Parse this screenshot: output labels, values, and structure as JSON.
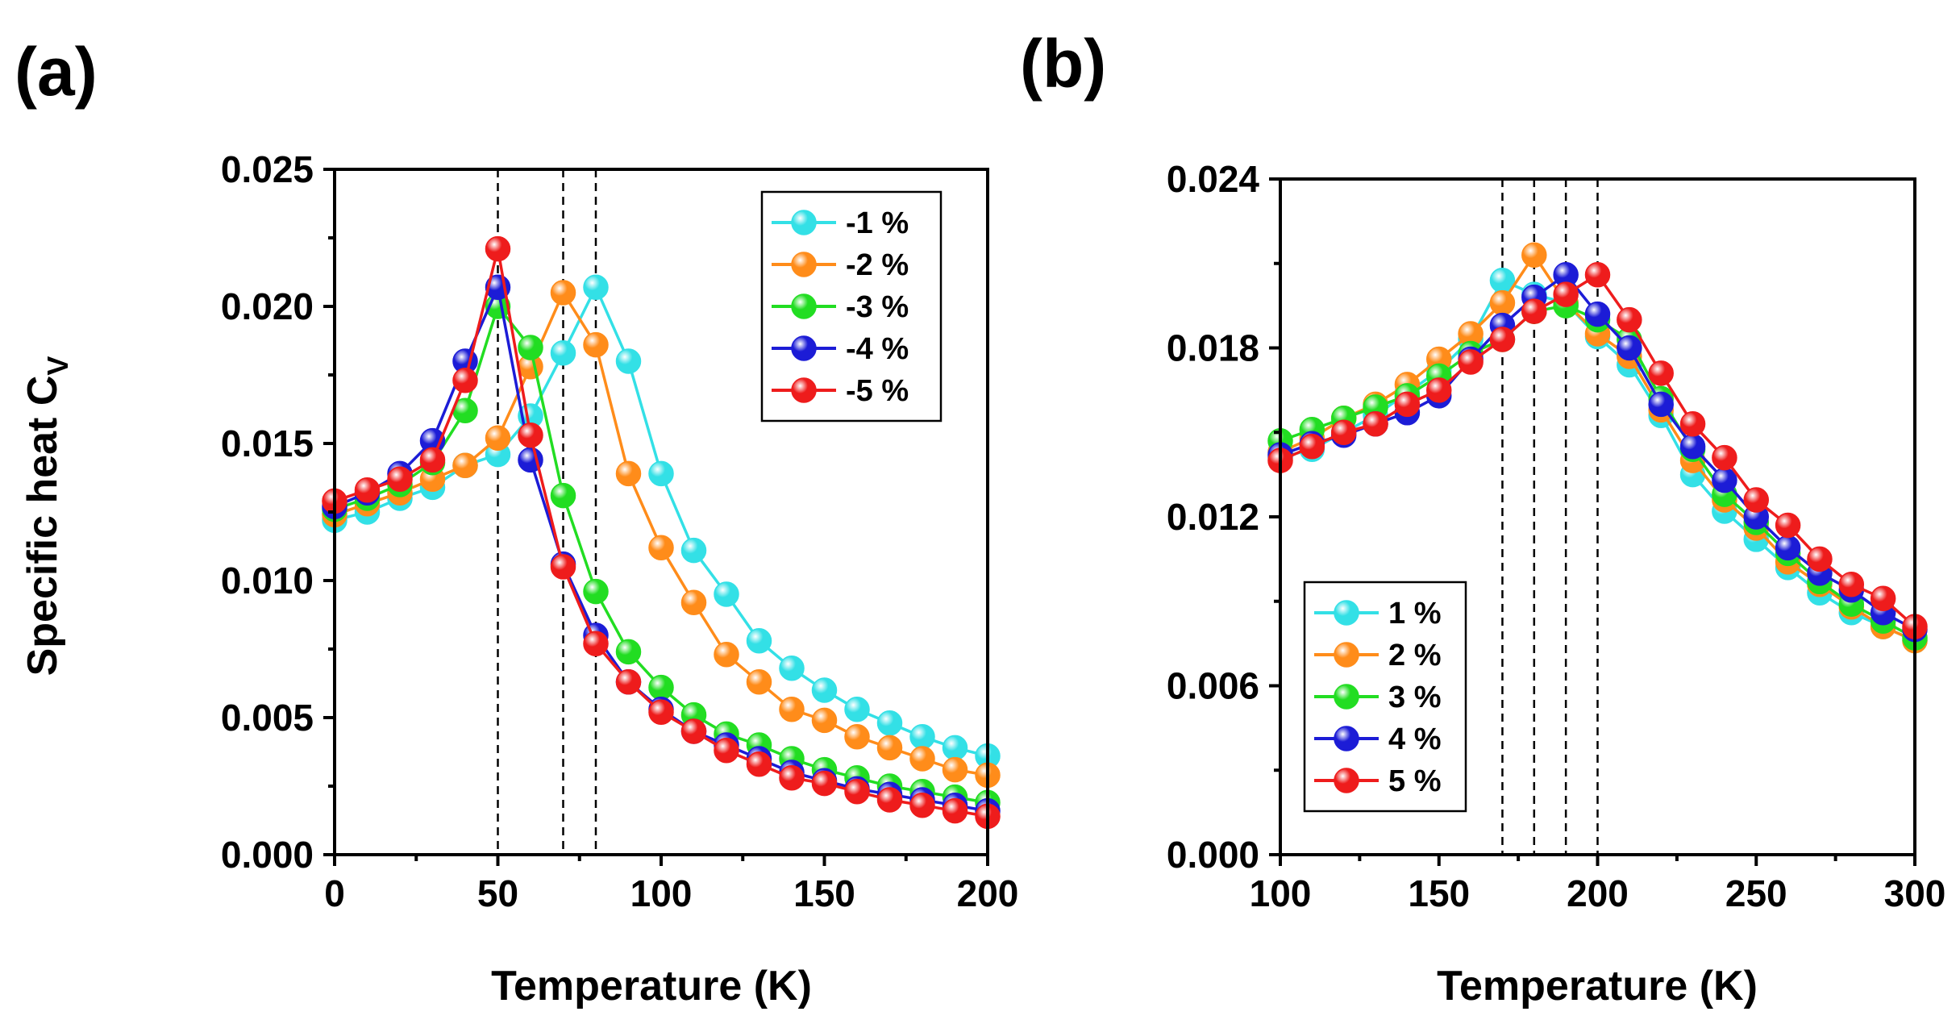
{
  "chart_data": [
    {
      "type": "line",
      "panel_label": "(a)",
      "xlabel": "Temperature (K)",
      "ylabel": "Specific heat C",
      "ylabel_subscript": "V",
      "xlim": [
        0,
        200
      ],
      "ylim": [
        0,
        0.025
      ],
      "xticks": [
        0,
        50,
        100,
        150,
        200
      ],
      "xtick_labels": [
        "0",
        "50",
        "100",
        "150",
        "200"
      ],
      "yticks": [
        0,
        0.005,
        0.01,
        0.015,
        0.02,
        0.025
      ],
      "ytick_labels": [
        "0.000",
        "0.005",
        "0.010",
        "0.015",
        "0.020",
        "0.025"
      ],
      "vlines": [
        50,
        70,
        80
      ],
      "legend_position": "top-right",
      "x": [
        0,
        10,
        20,
        30,
        40,
        50,
        60,
        70,
        80,
        90,
        100,
        110,
        120,
        130,
        140,
        150,
        160,
        170,
        180,
        190,
        200
      ],
      "series": [
        {
          "name": "-1 %",
          "color": "#33e0e6",
          "values": [
            0.0122,
            0.0125,
            0.013,
            0.0134,
            0.0142,
            0.0146,
            0.016,
            0.0183,
            0.0207,
            0.018,
            0.0139,
            0.0111,
            0.0095,
            0.0078,
            0.0068,
            0.006,
            0.0053,
            0.0048,
            0.0043,
            0.0039,
            0.0036
          ]
        },
        {
          "name": "-2 %",
          "color": "#ff8c1a",
          "values": [
            0.0124,
            0.0128,
            0.0132,
            0.0137,
            0.0142,
            0.0152,
            0.0178,
            0.0205,
            0.0186,
            0.0139,
            0.0112,
            0.0092,
            0.0073,
            0.0063,
            0.0053,
            0.0049,
            0.0043,
            0.0039,
            0.0035,
            0.0031,
            0.0029
          ]
        },
        {
          "name": "-3 %",
          "color": "#22dd22",
          "values": [
            0.0126,
            0.013,
            0.0135,
            0.0143,
            0.0162,
            0.02,
            0.0185,
            0.0131,
            0.0096,
            0.0074,
            0.0061,
            0.0051,
            0.0044,
            0.004,
            0.0035,
            0.0031,
            0.0028,
            0.0025,
            0.0023,
            0.0021,
            0.0019
          ]
        },
        {
          "name": "-4 %",
          "color": "#1c1cd6",
          "values": [
            0.0127,
            0.0132,
            0.0139,
            0.0151,
            0.018,
            0.0207,
            0.0144,
            0.0106,
            0.008,
            0.0063,
            0.0053,
            0.0045,
            0.004,
            0.0035,
            0.003,
            0.0027,
            0.0024,
            0.0022,
            0.002,
            0.0018,
            0.0016
          ]
        },
        {
          "name": "-5 %",
          "color": "#ee1c1c",
          "values": [
            0.0129,
            0.0133,
            0.0137,
            0.0144,
            0.0173,
            0.0221,
            0.0153,
            0.0105,
            0.0077,
            0.0063,
            0.0052,
            0.0045,
            0.0038,
            0.0033,
            0.0028,
            0.0026,
            0.0023,
            0.002,
            0.0018,
            0.0016,
            0.0014
          ]
        }
      ]
    },
    {
      "type": "line",
      "panel_label": "(b)",
      "xlabel": "Temperature (K)",
      "ylabel": "",
      "xlim": [
        100,
        300
      ],
      "ylim": [
        0,
        0.024
      ],
      "xticks": [
        100,
        150,
        200,
        250,
        300
      ],
      "xtick_labels": [
        "100",
        "150",
        "200",
        "250",
        "300"
      ],
      "yticks": [
        0,
        0.006,
        0.012,
        0.018,
        0.024
      ],
      "ytick_labels": [
        "0.000",
        "0.006",
        "0.012",
        "0.018",
        "0.024"
      ],
      "vlines": [
        170,
        180,
        190,
        200
      ],
      "legend_position": "bottom-left",
      "x": [
        100,
        110,
        120,
        130,
        140,
        150,
        160,
        170,
        180,
        190,
        200,
        210,
        220,
        230,
        240,
        250,
        260,
        270,
        280,
        290,
        300
      ],
      "series": [
        {
          "name": "1 %",
          "color": "#33e0e6",
          "values": [
            0.0141,
            0.0144,
            0.015,
            0.0156,
            0.0164,
            0.0172,
            0.0183,
            0.0204,
            0.0199,
            0.0196,
            0.0184,
            0.0174,
            0.0156,
            0.0135,
            0.0122,
            0.0112,
            0.0102,
            0.0093,
            0.0086,
            0.0081,
            0.0076
          ]
        },
        {
          "name": "2 %",
          "color": "#ff8c1a",
          "values": [
            0.0143,
            0.0148,
            0.0155,
            0.016,
            0.0167,
            0.0176,
            0.0185,
            0.0196,
            0.0213,
            0.0196,
            0.0185,
            0.0177,
            0.0158,
            0.014,
            0.0126,
            0.0116,
            0.0104,
            0.0096,
            0.0088,
            0.0081,
            0.0076
          ]
        },
        {
          "name": "3 %",
          "color": "#22dd22",
          "values": [
            0.0147,
            0.0151,
            0.0155,
            0.0159,
            0.0163,
            0.017,
            0.0178,
            0.0183,
            0.0193,
            0.0195,
            0.019,
            0.0183,
            0.0162,
            0.0144,
            0.0128,
            0.0118,
            0.0107,
            0.0097,
            0.0089,
            0.0083,
            0.0077
          ]
        },
        {
          "name": "4 %",
          "color": "#1c1cd6",
          "values": [
            0.0142,
            0.0146,
            0.0149,
            0.0153,
            0.0157,
            0.0163,
            0.0176,
            0.0188,
            0.0198,
            0.0206,
            0.0192,
            0.018,
            0.016,
            0.0145,
            0.0133,
            0.012,
            0.0109,
            0.01,
            0.0094,
            0.0086,
            0.008
          ]
        },
        {
          "name": "5 %",
          "color": "#ee1c1c",
          "values": [
            0.014,
            0.0145,
            0.015,
            0.0153,
            0.016,
            0.0165,
            0.0175,
            0.0183,
            0.0193,
            0.0199,
            0.0206,
            0.019,
            0.0171,
            0.0153,
            0.0141,
            0.0126,
            0.0117,
            0.0105,
            0.0096,
            0.0091,
            0.0081
          ]
        }
      ]
    }
  ]
}
